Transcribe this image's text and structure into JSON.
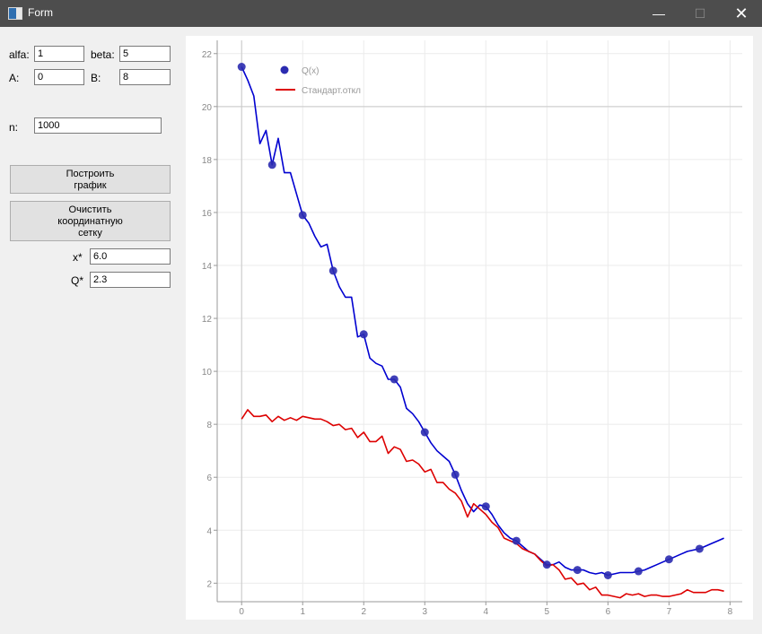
{
  "window": {
    "title": "Form"
  },
  "params": {
    "alfa_label": "alfa:",
    "alfa_value": "1",
    "beta_label": "beta:",
    "beta_value": "5",
    "a_label": "A:",
    "a_value": "0",
    "b_label": "B:",
    "b_value": "8",
    "n_label": "n:",
    "n_value": "1000"
  },
  "buttons": {
    "plot": "Построить\nграфик",
    "clear": "Очистить\nкоординатную\nсетку"
  },
  "results": {
    "x_label": "x*",
    "x_value": "6.0",
    "q_label": "Q*",
    "q_value": "2.3"
  },
  "colors": {
    "series_q": "#0000d0",
    "marker_q": "#2b2bb0",
    "series_std": "#dd0000"
  },
  "chart_data": {
    "type": "line",
    "xlim": [
      -0.4,
      8.2
    ],
    "ylim": [
      1.3,
      22.5
    ],
    "x_ticks": [
      "0",
      "1",
      "2",
      "3",
      "4",
      "5",
      "6",
      "7",
      "8"
    ],
    "y_ticks": [
      "2",
      "4",
      "6",
      "8",
      "10",
      "12",
      "14",
      "16",
      "18",
      "20",
      "22"
    ],
    "grid": true,
    "legend_position": "top-left",
    "series": [
      {
        "name": "Q(x)",
        "x": [
          0,
          0.1,
          0.2,
          0.3,
          0.4,
          0.5,
          0.6,
          0.7,
          0.8,
          0.9,
          1.0,
          1.1,
          1.2,
          1.3,
          1.4,
          1.5,
          1.6,
          1.7,
          1.8,
          1.9,
          2.0,
          2.1,
          2.2,
          2.3,
          2.4,
          2.5,
          2.6,
          2.7,
          2.8,
          2.9,
          3.0,
          3.1,
          3.2,
          3.3,
          3.4,
          3.5,
          3.6,
          3.7,
          3.8,
          3.9,
          4.0,
          4.1,
          4.2,
          4.3,
          4.4,
          4.5,
          4.6,
          4.7,
          4.8,
          4.9,
          5.0,
          5.1,
          5.2,
          5.3,
          5.4,
          5.5,
          5.6,
          5.7,
          5.8,
          5.9,
          6.0,
          6.1,
          6.2,
          6.3,
          6.4,
          6.5,
          6.6,
          6.7,
          6.8,
          6.9,
          7.0,
          7.1,
          7.2,
          7.3,
          7.4,
          7.5,
          7.6,
          7.7,
          7.8,
          7.9
        ],
        "y": [
          21.5,
          21.0,
          20.4,
          18.6,
          19.1,
          17.8,
          18.8,
          17.5,
          17.5,
          16.7,
          15.9,
          15.6,
          15.1,
          14.7,
          14.8,
          13.8,
          13.2,
          12.8,
          12.8,
          11.3,
          11.4,
          10.5,
          10.3,
          10.2,
          9.7,
          9.7,
          9.4,
          8.6,
          8.4,
          8.1,
          7.7,
          7.3,
          7.0,
          6.8,
          6.6,
          6.1,
          5.5,
          5.0,
          4.7,
          4.95,
          4.9,
          4.6,
          4.2,
          3.9,
          3.7,
          3.6,
          3.4,
          3.2,
          3.1,
          2.9,
          2.7,
          2.7,
          2.8,
          2.6,
          2.5,
          2.5,
          2.5,
          2.4,
          2.35,
          2.4,
          2.3,
          2.35,
          2.4,
          2.4,
          2.4,
          2.45,
          2.5,
          2.6,
          2.7,
          2.8,
          2.9,
          3.0,
          3.1,
          3.2,
          3.25,
          3.3,
          3.4,
          3.5,
          3.6,
          3.7
        ],
        "markers_x": [
          0,
          0.5,
          1.0,
          1.5,
          2.0,
          2.5,
          3.0,
          3.5,
          4.0,
          4.5,
          5.0,
          5.5,
          6.0,
          6.5,
          7.0,
          7.5
        ],
        "markers_y": [
          21.5,
          17.8,
          15.9,
          13.8,
          11.4,
          9.7,
          7.7,
          6.1,
          4.9,
          3.6,
          2.7,
          2.5,
          2.3,
          2.45,
          2.9,
          3.3
        ]
      },
      {
        "name": "Стандарт.откл",
        "x": [
          0,
          0.1,
          0.2,
          0.3,
          0.4,
          0.5,
          0.6,
          0.7,
          0.8,
          0.9,
          1.0,
          1.1,
          1.2,
          1.3,
          1.4,
          1.5,
          1.6,
          1.7,
          1.8,
          1.9,
          2.0,
          2.1,
          2.2,
          2.3,
          2.4,
          2.5,
          2.6,
          2.7,
          2.8,
          2.9,
          3.0,
          3.1,
          3.2,
          3.3,
          3.4,
          3.5,
          3.6,
          3.7,
          3.8,
          3.9,
          4.0,
          4.1,
          4.2,
          4.3,
          4.4,
          4.5,
          4.6,
          4.7,
          4.8,
          4.9,
          5.0,
          5.1,
          5.2,
          5.3,
          5.4,
          5.5,
          5.6,
          5.7,
          5.8,
          5.9,
          6.0,
          6.1,
          6.2,
          6.3,
          6.4,
          6.5,
          6.6,
          6.7,
          6.8,
          6.9,
          7.0,
          7.1,
          7.2,
          7.3,
          7.4,
          7.5,
          7.6,
          7.7,
          7.8,
          7.9
        ],
        "y": [
          8.2,
          8.55,
          8.3,
          8.3,
          8.35,
          8.1,
          8.3,
          8.15,
          8.25,
          8.15,
          8.3,
          8.25,
          8.2,
          8.2,
          8.1,
          7.95,
          8.0,
          7.8,
          7.85,
          7.5,
          7.7,
          7.35,
          7.35,
          7.55,
          6.9,
          7.15,
          7.05,
          6.6,
          6.65,
          6.5,
          6.2,
          6.3,
          5.8,
          5.8,
          5.55,
          5.4,
          5.1,
          4.5,
          5.0,
          4.8,
          4.6,
          4.3,
          4.1,
          3.7,
          3.6,
          3.5,
          3.3,
          3.2,
          3.1,
          2.85,
          2.65,
          2.7,
          2.5,
          2.15,
          2.2,
          1.95,
          2.0,
          1.75,
          1.85,
          1.55,
          1.55,
          1.5,
          1.45,
          1.6,
          1.55,
          1.6,
          1.5,
          1.55,
          1.55,
          1.5,
          1.5,
          1.55,
          1.6,
          1.75,
          1.65,
          1.65,
          1.65,
          1.75,
          1.75,
          1.7
        ]
      }
    ]
  }
}
